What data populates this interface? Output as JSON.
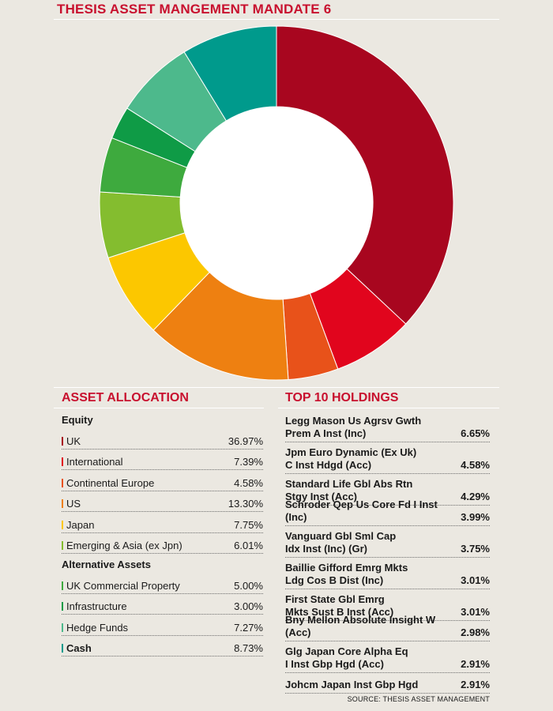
{
  "title": "THESIS ASSET MANGEMENT MANDATE 6",
  "asset_allocation": {
    "heading": "ASSET ALLOCATION",
    "groups": [
      {
        "name": "Equity",
        "items": [
          {
            "label": "UK",
            "value": "36.97%",
            "color": "#a8061f"
          },
          {
            "label": "International",
            "value": "7.39%",
            "color": "#e1051d"
          },
          {
            "label": "Continental Europe",
            "value": "4.58%",
            "color": "#e8521a"
          },
          {
            "label": "US",
            "value": "13.30%",
            "color": "#ee8011"
          },
          {
            "label": "Japan",
            "value": "7.75%",
            "color": "#fcc700"
          },
          {
            "label": "Emerging & Asia (ex Jpn)",
            "value": "6.01%",
            "color": "#84bd2f"
          }
        ]
      },
      {
        "name": "Alternative Assets",
        "items": [
          {
            "label": "UK Commercial Property",
            "value": "5.00%",
            "color": "#3eaa3e"
          },
          {
            "label": "Infrastructure",
            "value": "3.00%",
            "color": "#0f9b46"
          },
          {
            "label": "Hedge Funds",
            "value": "7.27%",
            "color": "#4db98c"
          }
        ]
      }
    ],
    "cash": {
      "label": "Cash",
      "value": "8.73%",
      "color": "#009a8c"
    }
  },
  "top_holdings": {
    "heading": "TOP 10 HOLDINGS",
    "items": [
      {
        "line1": "Legg Mason Us Agrsv Gwth",
        "line2": "Prem A Inst (Inc)",
        "value": "6.65%"
      },
      {
        "line1": "Jpm Euro Dynamic (Ex Uk)",
        "line2": "C Inst Hdgd (Acc)",
        "value": "4.58%"
      },
      {
        "line1": "Standard Life Gbl Abs Rtn",
        "line2": "Stgy Inst (Acc)",
        "value": "4.29%"
      },
      {
        "line1": "Schroder Qep Us Core Fd I Inst (Inc)",
        "line2": "",
        "value": "3.99%"
      },
      {
        "line1": "Vanguard Gbl Sml Cap",
        "line2": "Idx Inst (Inc) (Gr)",
        "value": "3.75%"
      },
      {
        "line1": "Baillie Gifford Emrg Mkts",
        "line2": "Ldg Cos B Dist (Inc)",
        "value": "3.01%"
      },
      {
        "line1": "First State Gbl Emrg",
        "line2": "Mkts Sust B Inst (Acc)",
        "value": "3.01%"
      },
      {
        "line1": "Bny Mellon Absolute Insight W (Acc)",
        "line2": "",
        "value": "2.98%"
      },
      {
        "line1": "Glg Japan Core Alpha Eq",
        "line2": "I Inst Gbp Hgd (Acc)",
        "value": "2.91%"
      },
      {
        "line1": "Johcm Japan Inst Gbp Hgd",
        "line2": "",
        "value": "2.91%"
      }
    ]
  },
  "source": "SOURCE: THESIS ASSET MANAGEMENT",
  "chart_data": {
    "type": "pie",
    "donut": true,
    "start": "12 o'clock",
    "direction": "clockwise",
    "categories": [
      "UK",
      "International",
      "Continental Europe",
      "US",
      "Japan",
      "Emerging & Asia (ex Jpn)",
      "UK Commercial Property",
      "Infrastructure",
      "Hedge Funds",
      "Cash"
    ],
    "values": [
      36.97,
      7.39,
      4.58,
      13.3,
      7.75,
      6.01,
      5.0,
      3.0,
      7.27,
      8.73
    ],
    "colors": [
      "#a8061f",
      "#e1051d",
      "#e8521a",
      "#ee8011",
      "#fcc700",
      "#84bd2f",
      "#3eaa3e",
      "#0f9b46",
      "#4db98c",
      "#009a8c"
    ]
  }
}
